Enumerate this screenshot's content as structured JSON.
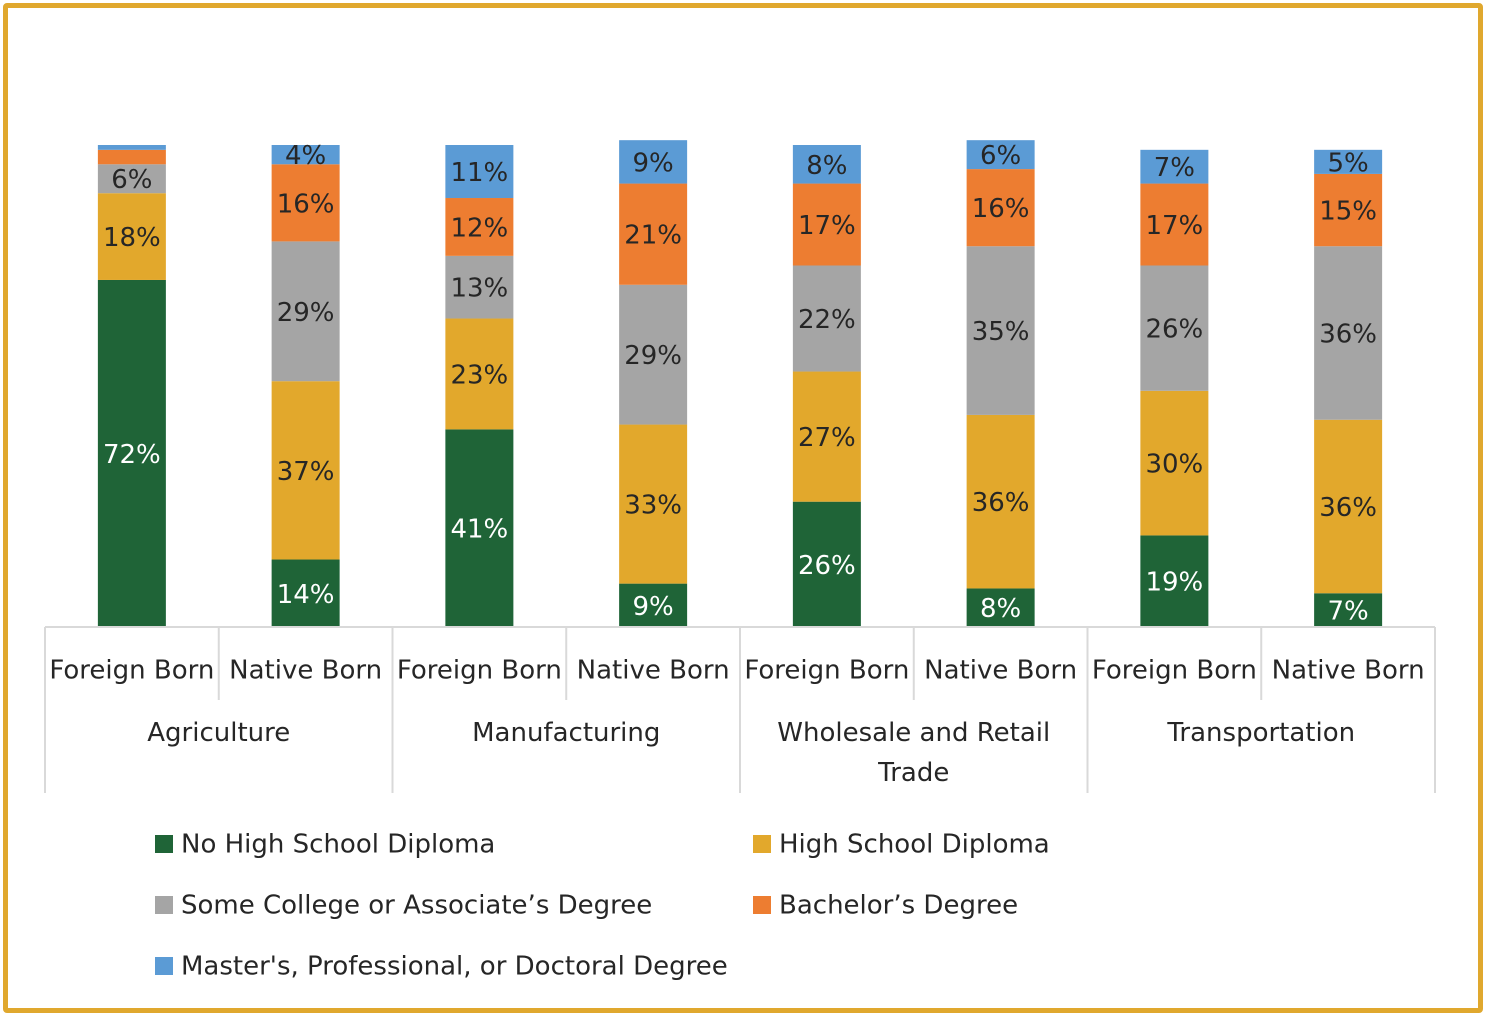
{
  "chart_data": {
    "type": "stacked_bar",
    "categories": [
      "Foreign Born",
      "Native Born",
      "Foreign Born",
      "Native Born",
      "Foreign Born",
      "Native Born",
      "Foreign Born",
      "Native Born"
    ],
    "groups": [
      "Agriculture",
      "Manufacturing",
      "Wholesale and Retail Trade",
      "Transportation"
    ],
    "ylim": [
      0,
      100
    ],
    "series": [
      {
        "name": "No High School Diploma",
        "color": "#1f6437",
        "values": [
          72,
          14,
          41,
          9,
          26,
          8,
          19,
          7
        ],
        "value_labels": [
          "72%",
          "14%",
          "41%",
          "9%",
          "26%",
          "8%",
          "19%",
          "7%"
        ]
      },
      {
        "name": "High School Diploma",
        "color": "#e2a82c",
        "values": [
          18,
          37,
          23,
          33,
          27,
          36,
          30,
          36
        ],
        "value_labels": [
          "18%",
          "37%",
          "23%",
          "33%",
          "27%",
          "36%",
          "30%",
          "36%"
        ]
      },
      {
        "name": "Some College or Associate’s Degree",
        "color": "#a5a5a5",
        "values": [
          6,
          29,
          13,
          29,
          22,
          35,
          26,
          36
        ],
        "value_labels": [
          "6%",
          "29%",
          "13%",
          "29%",
          "22%",
          "35%",
          "26%",
          "36%"
        ]
      },
      {
        "name": "Bachelor’s Degree",
        "color": "#ed7d31",
        "values": [
          3,
          16,
          12,
          21,
          17,
          16,
          17,
          15
        ],
        "value_labels": [
          null,
          "16%",
          "12%",
          "21%",
          "17%",
          "16%",
          "17%",
          "15%"
        ]
      },
      {
        "name": "Master's, Professional, or Doctoral Degree",
        "color": "#5b9bd5",
        "values": [
          1,
          4,
          11,
          9,
          8,
          6,
          7,
          5
        ],
        "value_labels": [
          null,
          "4%",
          "11%",
          "9%",
          "8%",
          "6%",
          "7%",
          "5%"
        ]
      }
    ]
  }
}
